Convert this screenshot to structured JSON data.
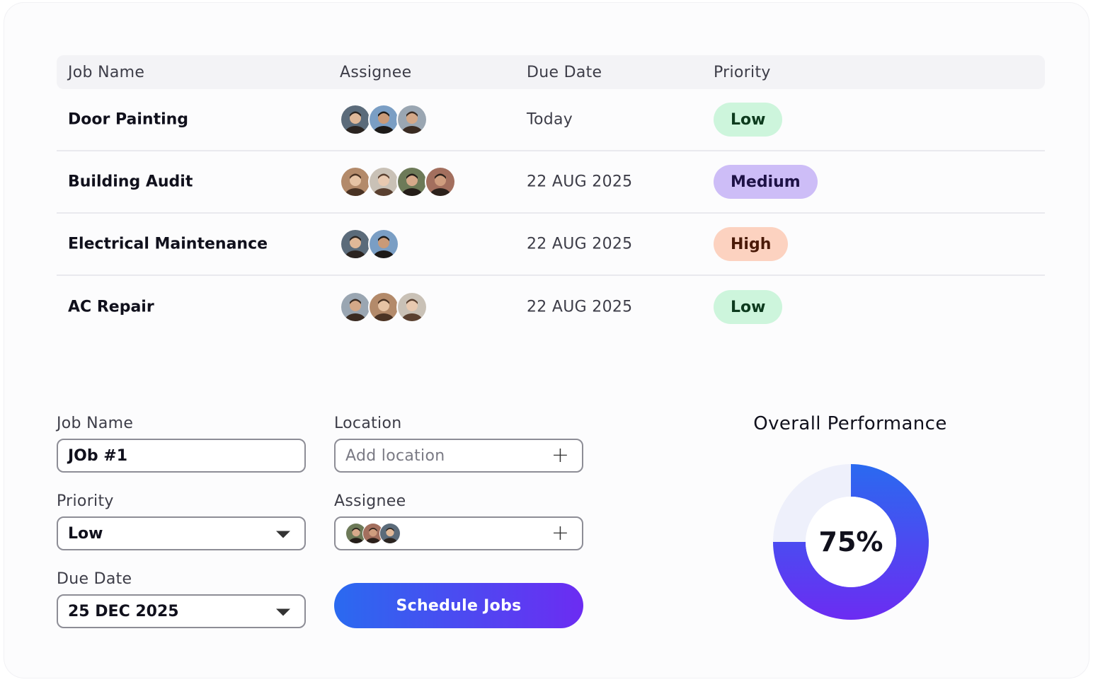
{
  "table": {
    "headers": {
      "job_name": "Job Name",
      "assignee": "Assignee",
      "due_date": "Due Date",
      "priority": "Priority"
    },
    "rows": [
      {
        "name": "Door Painting",
        "assignees": 3,
        "due": "Today",
        "priority": "Low"
      },
      {
        "name": "Building Audit",
        "assignees": 4,
        "due": "22 AUG 2025",
        "priority": "Medium"
      },
      {
        "name": "Electrical Maintenance",
        "assignees": 2,
        "due": "22 AUG 2025",
        "priority": "High"
      },
      {
        "name": "AC Repair",
        "assignees": 3,
        "due": "22 AUG 2025",
        "priority": "Low"
      }
    ]
  },
  "priority_colors": {
    "Low": {
      "bg": "#cdf5dc",
      "fg": "#0d3b1e"
    },
    "Medium": {
      "bg": "#cdbdf7",
      "fg": "#1e1246"
    },
    "High": {
      "bg": "#fcd2c0",
      "fg": "#4a1a08"
    }
  },
  "form": {
    "job_name_label": "Job Name",
    "job_name_value": "JOb #1",
    "location_label": "Location",
    "location_placeholder": "Add location",
    "priority_label": "Priority",
    "priority_value": "Low",
    "assignee_label": "Assignee",
    "due_date_label": "Due Date",
    "due_date_value": "25 DEC 2025",
    "schedule_button": "Schedule Jobs"
  },
  "performance": {
    "title": "Overall Performance",
    "percent_label": "75%",
    "percent": 75,
    "colors": {
      "track": "#eef0fb",
      "start": "#2a6af0",
      "end": "#6c2cf2"
    }
  }
}
